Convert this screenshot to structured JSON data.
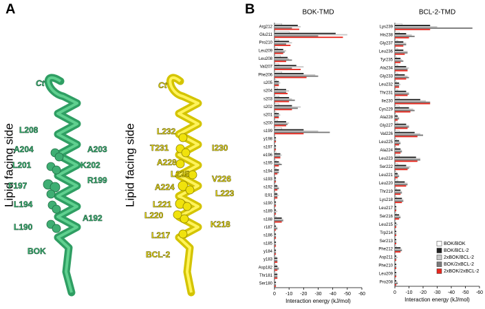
{
  "panel_a": {
    "label": "A",
    "left": {
      "side_label": "Lipid facing side",
      "terminus": "Ct",
      "protein": "BOK",
      "residues": [
        "L208",
        "A204",
        "A203",
        "L201",
        "K202",
        "F197",
        "R199",
        "L194",
        "A192",
        "L190"
      ]
    },
    "right": {
      "side_label": "Lipid facing side",
      "terminus": "Ct",
      "protein": "BCL-2",
      "residues": [
        "L232",
        "T231",
        "I230",
        "A228",
        "L225",
        "V226",
        "A224",
        "L223",
        "L221",
        "L220",
        "K218",
        "L217"
      ]
    }
  },
  "panel_b": {
    "label": "B"
  },
  "chart_data": [
    {
      "type": "hbar",
      "title": "BOK-TMD",
      "x_label": "Interaction energy (kJ/mol)",
      "categories": [
        "Arg212",
        "Glu211",
        "Pro210",
        "Leu209",
        "Leu208",
        "Val207",
        "Phe206",
        "s205",
        "s204",
        "s203",
        "s202",
        "s201",
        "s200",
        "s199",
        "y198",
        "s197",
        "e196",
        "s195",
        "s194",
        "s193",
        "s192",
        "l191",
        "s190",
        "s189",
        "s188",
        "r187",
        "s186",
        "s185",
        "y184",
        "y183",
        "Asp182",
        "Thr181",
        "Ser180"
      ],
      "xlim": [
        0,
        -60
      ],
      "xticks": [
        0,
        -10,
        -20,
        -30,
        -40,
        -50,
        -60
      ],
      "series": [
        {
          "color": "#ffffff",
          "values": [
            -5,
            -10,
            -3,
            -2,
            -4,
            -3,
            -5,
            -1,
            -2,
            -3,
            -3,
            -1,
            -2,
            -5,
            0,
            0,
            -1,
            -1,
            -1,
            0,
            -1,
            -1,
            0,
            0,
            -1,
            0,
            0,
            0,
            0,
            -1,
            -1,
            -1,
            0
          ]
        },
        {
          "color": "#222222",
          "values": [
            -16,
            -42,
            -10,
            -6,
            -9,
            -15,
            -20,
            -3,
            -8,
            -10,
            -12,
            -3,
            -8,
            -20,
            -1,
            -1,
            -4,
            -3,
            -3,
            -1,
            -2,
            -2,
            -1,
            -1,
            -5,
            -1,
            -1,
            -1,
            -1,
            -2,
            -2,
            -2,
            -1
          ]
        },
        {
          "color": "#c8c8c8",
          "values": [
            -18,
            -50,
            -12,
            -8,
            -10,
            -20,
            -28,
            -4,
            -10,
            -12,
            -18,
            -4,
            -10,
            -30,
            -1,
            -1,
            -5,
            -4,
            -3,
            -1,
            -3,
            -3,
            -1,
            -2,
            -6,
            -2,
            -1,
            -1,
            -1,
            -2,
            -3,
            -2,
            -1
          ]
        },
        {
          "color": "#7a7a7a",
          "values": [
            -12,
            -30,
            -8,
            -7,
            -12,
            -12,
            -30,
            -3,
            -8,
            -14,
            -16,
            -3,
            -9,
            -38,
            -1,
            -1,
            -4,
            -5,
            -3,
            -1,
            -3,
            -2,
            -1,
            -1,
            -6,
            -2,
            -1,
            -1,
            -1,
            -2,
            -3,
            -2,
            -1
          ]
        },
        {
          "color": "#e8281e",
          "values": [
            -17,
            -47,
            -11,
            -6,
            -8,
            -18,
            -22,
            -3,
            -9,
            -10,
            -12,
            -3,
            -8,
            -20,
            -1,
            -1,
            -4,
            -3,
            -2,
            -1,
            -2,
            -2,
            -1,
            -1,
            -5,
            -1,
            -1,
            -1,
            -1,
            -2,
            -2,
            -2,
            -1
          ]
        }
      ]
    },
    {
      "type": "hbar",
      "title": "BCL-2-TMD",
      "x_label": "Interaction energy (kJ/mol)",
      "categories": [
        "Lys239",
        "His238",
        "Gly237",
        "Leu236",
        "Tyr235",
        "Ala234",
        "Gly233",
        "Leu232",
        "Thr231",
        "Ile230",
        "Cys229",
        "Ala228",
        "Gly227",
        "Val226",
        "Leu225",
        "Ala224",
        "Leu223",
        "Ser222",
        "Leu221",
        "Leu220",
        "Thr219",
        "Lys218",
        "Leu217",
        "Ser216",
        "Leu215",
        "Trp214",
        "Ser213",
        "Phe212",
        "Asp211",
        "Phe210",
        "Leu209",
        "Pro208"
      ],
      "xlim": [
        0,
        -60
      ],
      "xticks": [
        0,
        -10,
        -20,
        -30,
        -40,
        -50,
        -60
      ],
      "legend": "lower right",
      "series": [
        {
          "name": "BOK/BOK",
          "color": "#ffffff",
          "values": [
            -5,
            -3,
            -2,
            -2,
            -1,
            -2,
            -2,
            -1,
            -2,
            -3,
            -3,
            -1,
            -2,
            -3,
            -1,
            -1,
            -3,
            -2,
            -1,
            -2,
            -1,
            -1,
            0,
            -1,
            0,
            0,
            0,
            -1,
            0,
            0,
            0,
            0
          ]
        },
        {
          "name": "BOK/BCL-2",
          "color": "#222222",
          "values": [
            -25,
            -8,
            -6,
            -6,
            -4,
            -8,
            -7,
            -3,
            -8,
            -18,
            -10,
            -2,
            -8,
            -14,
            -3,
            -4,
            -15,
            -8,
            -2,
            -7,
            -4,
            -5,
            -1,
            -3,
            -1,
            -1,
            -1,
            -4,
            -1,
            -1,
            -1,
            -1
          ]
        },
        {
          "name": "2xBOK/BCL-2",
          "color": "#c8c8c8",
          "values": [
            -30,
            -12,
            -8,
            -9,
            -5,
            -10,
            -9,
            -4,
            -10,
            -22,
            -13,
            -3,
            -10,
            -18,
            -4,
            -5,
            -18,
            -11,
            -3,
            -9,
            -5,
            -6,
            -1,
            -4,
            -2,
            -1,
            -1,
            -5,
            -2,
            -1,
            -1,
            -2
          ]
        },
        {
          "name": "BOK/2xBCL-2",
          "color": "#7a7a7a",
          "values": [
            -55,
            -14,
            -8,
            -9,
            -6,
            -9,
            -10,
            -3,
            -10,
            -25,
            -14,
            -3,
            -10,
            -20,
            -4,
            -5,
            -18,
            -10,
            -3,
            -9,
            -5,
            -6,
            -1,
            -4,
            -1,
            -1,
            -1,
            -5,
            -1,
            -1,
            -1,
            -2
          ]
        },
        {
          "name": "2xBOK/2xBCL-2",
          "color": "#e8281e",
          "values": [
            -25,
            -10,
            -6,
            -7,
            -4,
            -9,
            -8,
            -3,
            -9,
            -25,
            -11,
            -2,
            -9,
            -16,
            -3,
            -4,
            -16,
            -9,
            -2,
            -8,
            -4,
            -5,
            -1,
            -3,
            -1,
            -1,
            -1,
            -4,
            -1,
            -1,
            -1,
            -1
          ]
        }
      ]
    }
  ]
}
